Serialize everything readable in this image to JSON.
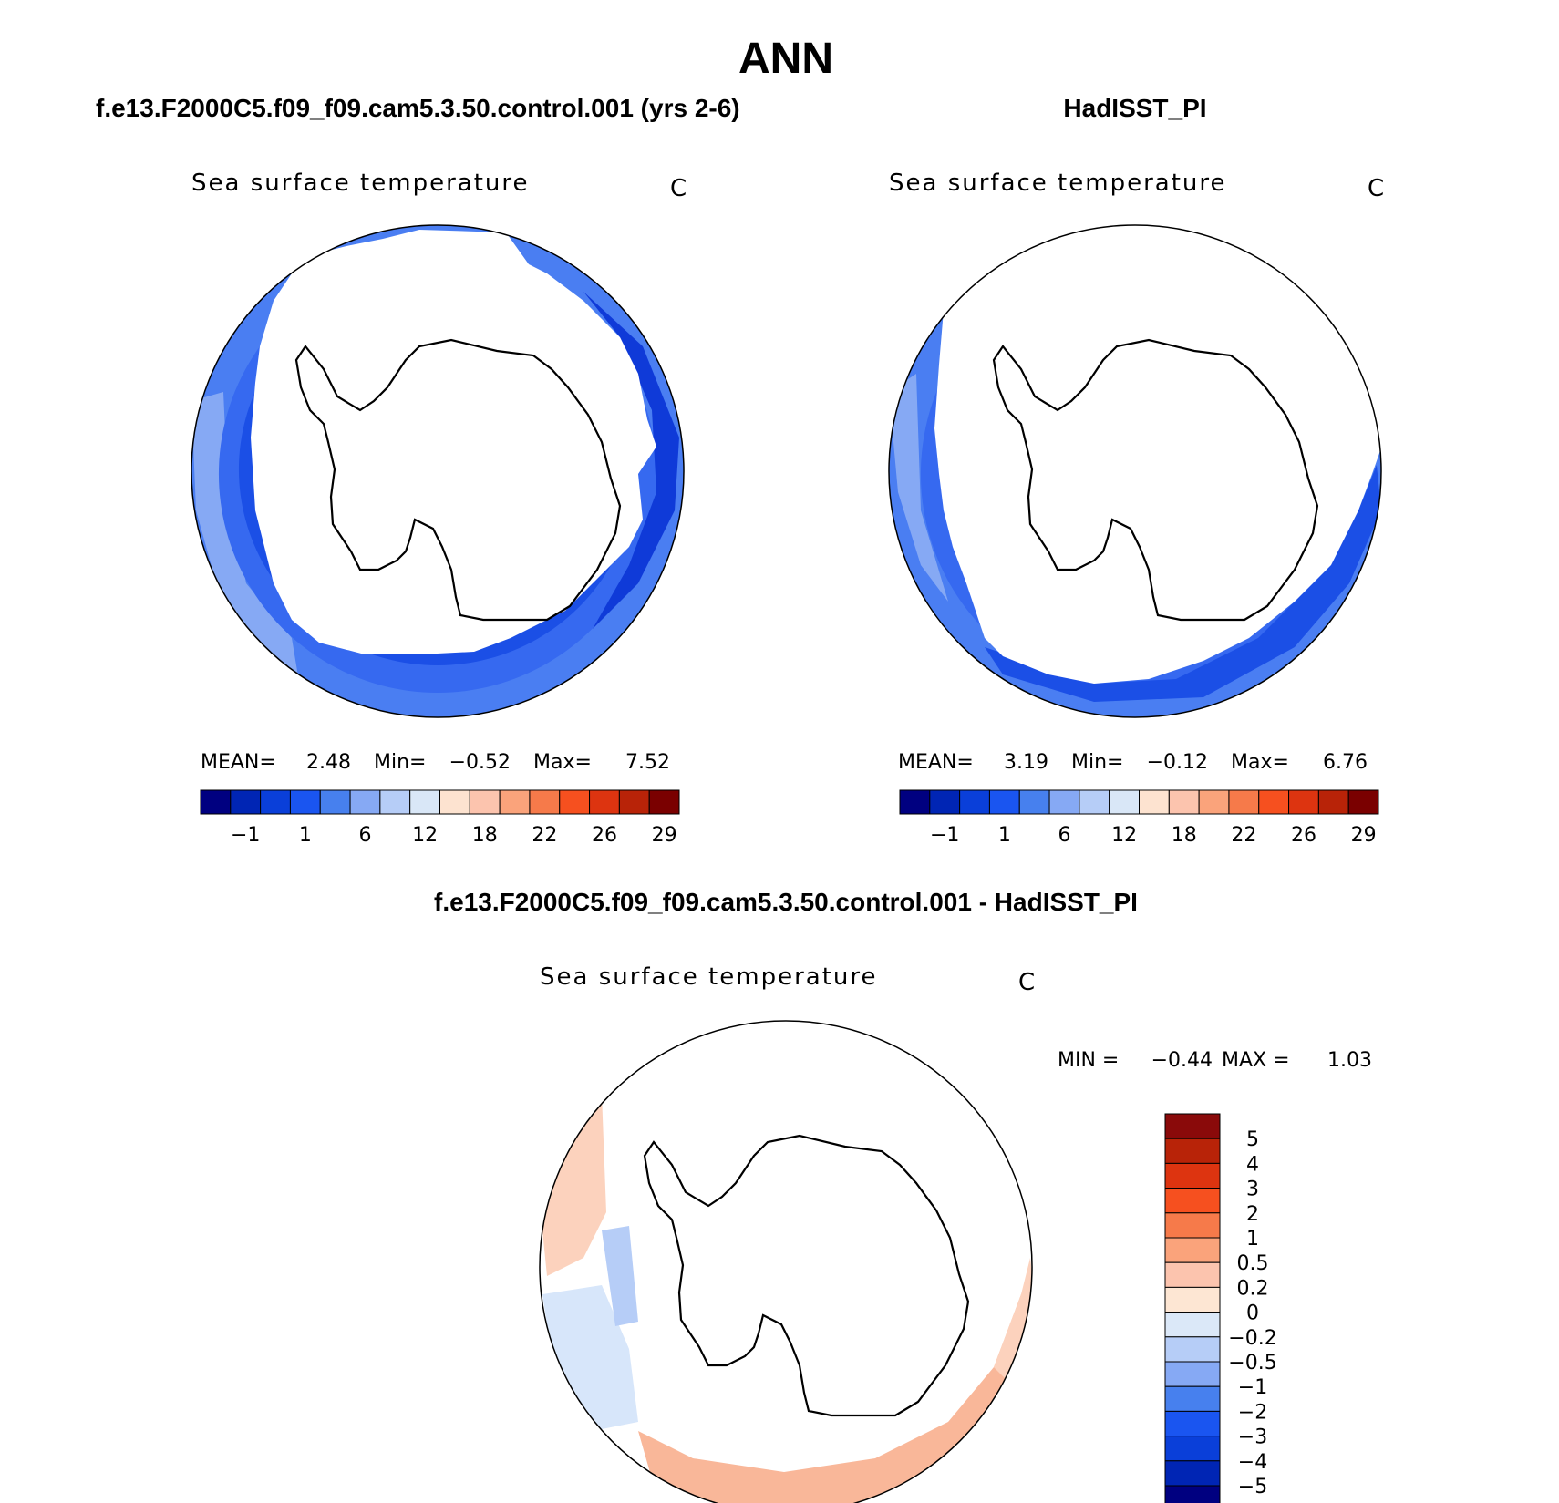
{
  "figure": {
    "title": "ANN"
  },
  "chart_data": [
    {
      "type": "map",
      "projection": "south-polar stereographic",
      "panel_title": "f.e13.F2000C5.f09_f09.cam5.3.50.control.001 (yrs 2-6)",
      "variable": "Sea surface temperature",
      "units": "C",
      "stats": [
        {
          "label": "MEAN=",
          "value": "2.48"
        },
        {
          "label": "Min=",
          "value": "−0.52"
        },
        {
          "label": "Max=",
          "value": "7.52"
        }
      ],
      "colorbar": {
        "orientation": "horizontal",
        "colors": [
          "#000080",
          "#0025b4",
          "#0a3fd9",
          "#1a55f0",
          "#4780ee",
          "#86a9f4",
          "#b6cdf7",
          "#d9e7f7",
          "#fde3d0",
          "#fcc4ae",
          "#faa37b",
          "#f67a4a",
          "#f6501f",
          "#dd3410",
          "#b82308",
          "#7a0000"
        ],
        "tick_labels": [
          "−1",
          "1",
          "6",
          "12",
          "18",
          "22",
          "26",
          "29"
        ]
      },
      "region_colors": {
        "outer": "#4a7ef2",
        "mid": "#3669f0",
        "inner": "#1b4fe6",
        "edge": "#0f3ad8",
        "warm_patch": "#86a9f4"
      }
    },
    {
      "type": "map",
      "projection": "south-polar stereographic",
      "panel_title": "HadISST_PI",
      "variable": "Sea surface temperature",
      "units": "C",
      "stats": [
        {
          "label": "MEAN=",
          "value": "3.19"
        },
        {
          "label": "Min=",
          "value": "−0.12"
        },
        {
          "label": "Max=",
          "value": "6.76"
        }
      ],
      "colorbar": {
        "orientation": "horizontal",
        "colors": [
          "#000080",
          "#0025b4",
          "#0a3fd9",
          "#1a55f0",
          "#4780ee",
          "#86a9f4",
          "#b6cdf7",
          "#d9e7f7",
          "#fde3d0",
          "#fcc4ae",
          "#faa37b",
          "#f67a4a",
          "#f6501f",
          "#dd3410",
          "#b82308",
          "#7a0000"
        ],
        "tick_labels": [
          "−1",
          "1",
          "6",
          "12",
          "18",
          "22",
          "26",
          "29"
        ]
      },
      "region_colors": {
        "outer": "#4a7ef2",
        "mid": "#3669f0",
        "inner": "#1b4fe6",
        "edge": "#0f3ad8",
        "warm_patch": "#86a9f4"
      }
    },
    {
      "type": "map",
      "projection": "south-polar stereographic",
      "panel_title": "f.e13.F2000C5.f09_f09.cam5.3.50.control.001 - HadISST_PI",
      "variable": "Sea surface temperature",
      "units": "C",
      "stats": [
        {
          "label": "MIN =",
          "value": "−0.44"
        },
        {
          "label": "MAX =",
          "value": "1.03"
        }
      ],
      "colorbar": {
        "orientation": "vertical",
        "colors_top_to_bottom": [
          "#8a0a0a",
          "#b82308",
          "#dd3410",
          "#f6501f",
          "#f67a4a",
          "#faa37b",
          "#fcc4ae",
          "#fde6d3",
          "#dbe8f8",
          "#b6cdf7",
          "#86a9f4",
          "#4780ee",
          "#1a55f0",
          "#0a3fd9",
          "#0025b4",
          "#000080"
        ],
        "tick_labels_top_to_bottom": [
          "5",
          "4",
          "3",
          "2",
          "1",
          "0.5",
          "0.2",
          "0",
          "−0.2",
          "−0.5",
          "−1",
          "−2",
          "−3",
          "−4",
          "−5"
        ]
      },
      "region_colors": {
        "positive": "#f9b799",
        "weak_positive": "#fcd2bd",
        "weak_negative": "#d7e6fa",
        "negative_patch": "#b6cdf7"
      }
    }
  ]
}
